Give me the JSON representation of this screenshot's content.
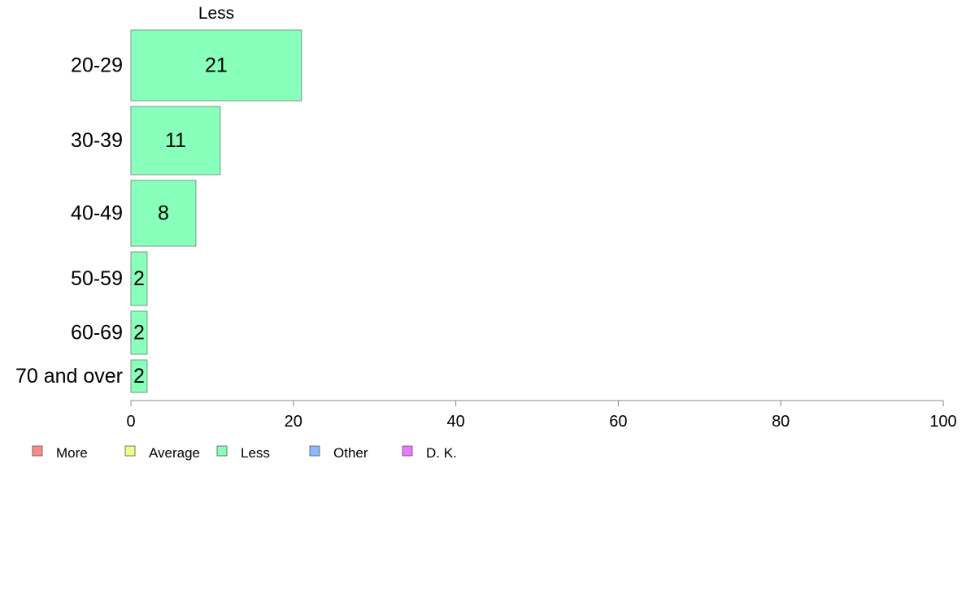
{
  "chart_data": {
    "type": "bar",
    "orientation": "horizontal",
    "column_title": "Less",
    "categories": [
      "20-29",
      "30-39",
      "40-49",
      "50-59",
      "60-69",
      "70 and over"
    ],
    "series": [
      {
        "name": "Less",
        "values": [
          21,
          11,
          8,
          2,
          2,
          2
        ],
        "color": "#88ffbb"
      }
    ],
    "xlim": [
      0,
      100
    ],
    "xticks": [
      0,
      20,
      40,
      60,
      80,
      100
    ],
    "legend": {
      "position": "bottom-left",
      "items": [
        {
          "label": "More",
          "color": "#ff8888"
        },
        {
          "label": "Average",
          "color": "#eeff88"
        },
        {
          "label": "Less",
          "color": "#88ffbb"
        },
        {
          "label": "Other",
          "color": "#88bbff"
        },
        {
          "label": "D. K.",
          "color": "#ee77ff"
        }
      ]
    },
    "grid": false
  }
}
